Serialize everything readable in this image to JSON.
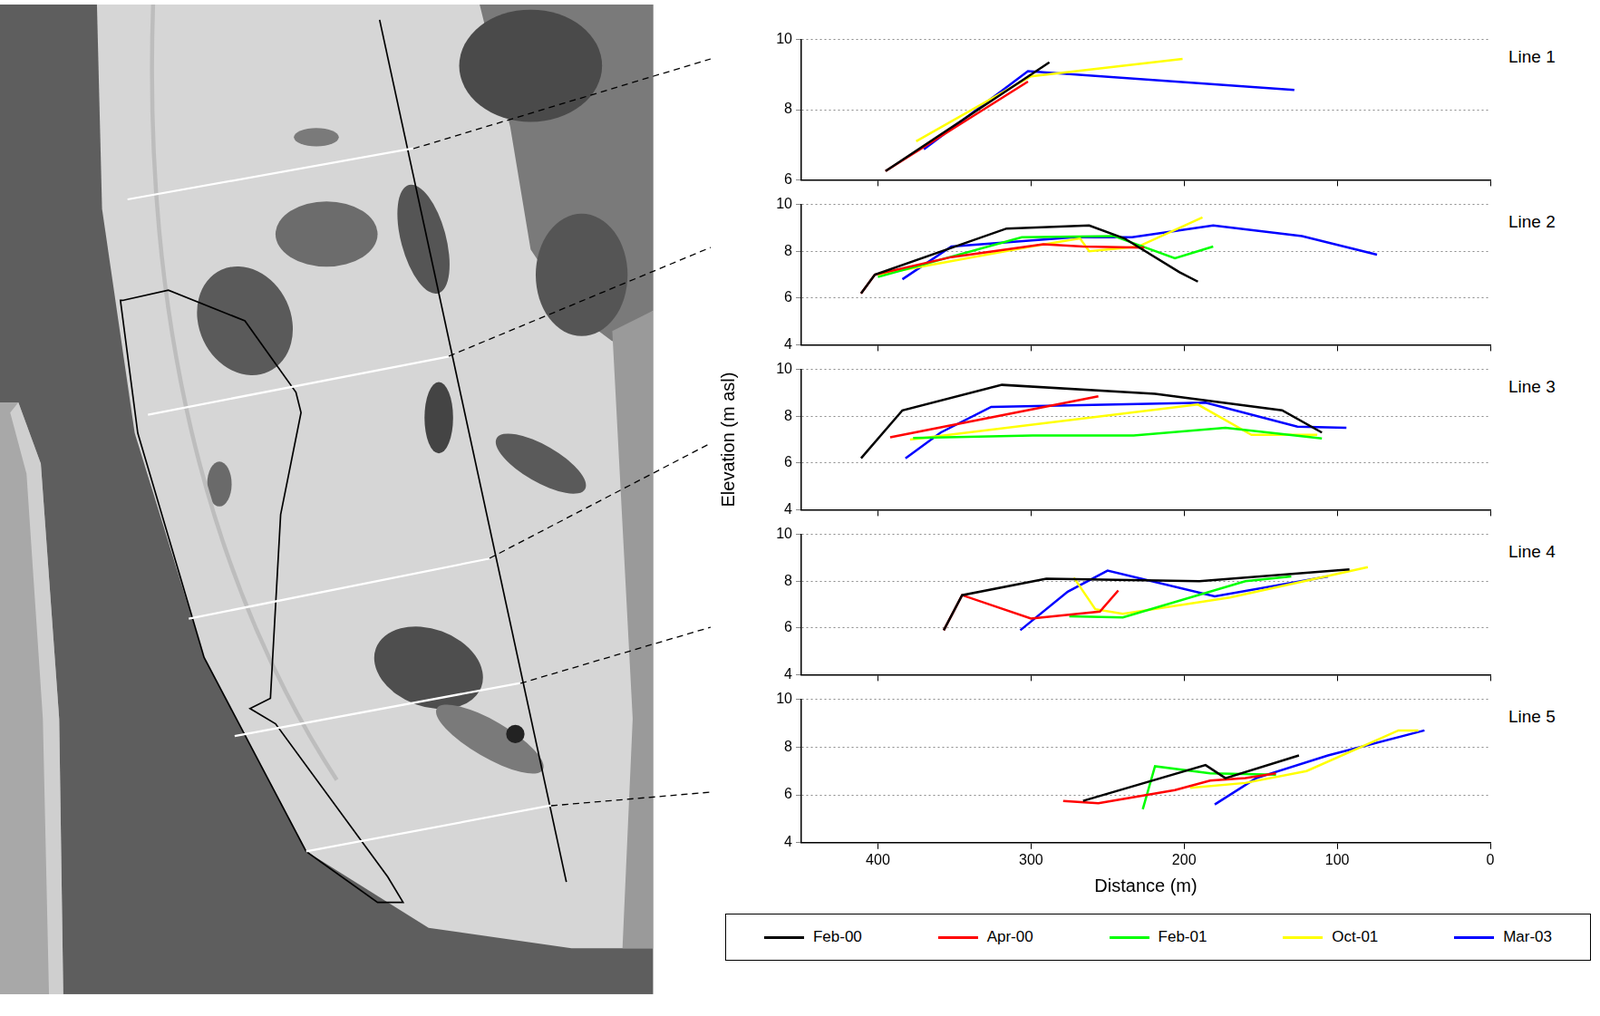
{
  "chart_data": [
    {
      "type": "line",
      "title": "Line 1",
      "xlim": [
        450,
        0
      ],
      "xticks": [
        400,
        300,
        200,
        100,
        0
      ],
      "ylim": [
        6,
        10
      ],
      "yticks": [
        6,
        8,
        10
      ],
      "grid": true,
      "tick_labels": "y",
      "series": [
        {
          "name": "Feb-00",
          "color": "#000000",
          "x": [
            395,
            300,
            288
          ],
          "values": [
            6.25,
            9.0,
            9.35
          ]
        },
        {
          "name": "Apr-00",
          "color": "#ff0000",
          "x": [
            395,
            302
          ],
          "values": [
            6.25,
            8.8
          ]
        },
        {
          "name": "Oct-01",
          "color": "#ffff00",
          "x": [
            375,
            300,
            201
          ],
          "values": [
            7.1,
            8.95,
            9.45
          ]
        },
        {
          "name": "Mar-03",
          "color": "#0000ff",
          "x": [
            370,
            302,
            128
          ],
          "values": [
            6.87,
            9.1,
            8.56
          ]
        }
      ]
    },
    {
      "type": "line",
      "title": "Line 2",
      "xlim": [
        450,
        0
      ],
      "xticks": [
        400,
        300,
        200,
        100,
        0
      ],
      "ylim": [
        4,
        10
      ],
      "yticks": [
        4,
        6,
        8,
        10
      ],
      "grid": true,
      "tick_labels": "y",
      "series": [
        {
          "name": "Feb-00",
          "color": "#000000",
          "x": [
            411,
            402,
            316,
            262,
            239,
            203,
            191
          ],
          "values": [
            6.2,
            7.0,
            8.97,
            9.1,
            8.55,
            7.1,
            6.7
          ]
        },
        {
          "name": "Apr-00",
          "color": "#ff0000",
          "x": [
            411,
            402,
            352,
            292,
            266,
            226
          ],
          "values": [
            6.2,
            7.0,
            7.75,
            8.3,
            8.2,
            8.15
          ]
        },
        {
          "name": "Feb-01",
          "color": "#00ff00",
          "x": [
            400,
            306,
            246,
            206,
            181
          ],
          "values": [
            6.9,
            8.6,
            8.65,
            7.7,
            8.2
          ]
        },
        {
          "name": "Oct-01",
          "color": "#ffff00",
          "x": [
            400,
            300,
            268,
            262,
            230,
            188
          ],
          "values": [
            7.0,
            8.2,
            8.55,
            8.0,
            8.2,
            9.45
          ]
        },
        {
          "name": "Mar-03",
          "color": "#0000ff",
          "x": [
            384,
            352,
            272,
            234,
            181,
            123,
            74
          ],
          "values": [
            6.8,
            8.2,
            8.6,
            8.6,
            9.1,
            8.65,
            7.85
          ]
        }
      ]
    },
    {
      "type": "line",
      "title": "Line 3",
      "ylabel": "Elevation (m asl)",
      "xlim": [
        450,
        0
      ],
      "xticks": [
        400,
        300,
        200,
        100,
        0
      ],
      "ylim": [
        4,
        10
      ],
      "yticks": [
        4,
        6,
        8,
        10
      ],
      "grid": true,
      "tick_labels": "y",
      "series": [
        {
          "name": "Feb-00",
          "color": "#000000",
          "x": [
            411,
            384,
            319,
            219,
            136,
            110
          ],
          "values": [
            6.2,
            8.25,
            9.34,
            8.96,
            8.25,
            7.3
          ]
        },
        {
          "name": "Apr-00",
          "color": "#ff0000",
          "x": [
            392,
            256
          ],
          "values": [
            7.1,
            8.85
          ]
        },
        {
          "name": "Feb-01",
          "color": "#00ff00",
          "x": [
            377,
            299,
            233,
            173,
            110
          ],
          "values": [
            7.07,
            7.17,
            7.17,
            7.5,
            7.05
          ]
        },
        {
          "name": "Oct-01",
          "color": "#ffff00",
          "x": [
            379,
            191,
            156,
            113
          ],
          "values": [
            7.0,
            8.5,
            7.2,
            7.2
          ]
        },
        {
          "name": "Mar-03",
          "color": "#0000ff",
          "x": [
            382,
            359,
            326,
            186,
            126,
            94
          ],
          "values": [
            6.2,
            7.3,
            8.4,
            8.58,
            7.55,
            7.5
          ]
        }
      ]
    },
    {
      "type": "line",
      "title": "Line 4",
      "xlim": [
        450,
        0
      ],
      "xticks": [
        400,
        300,
        200,
        100,
        0
      ],
      "ylim": [
        4,
        10
      ],
      "yticks": [
        4,
        6,
        8,
        10
      ],
      "grid": true,
      "tick_labels": "y",
      "series": [
        {
          "name": "Feb-00",
          "color": "#000000",
          "x": [
            357,
            345,
            290,
            190,
            92
          ],
          "values": [
            5.9,
            7.4,
            8.1,
            8.0,
            8.5
          ]
        },
        {
          "name": "Apr-00",
          "color": "#ff0000",
          "x": [
            357,
            345,
            300,
            255,
            243
          ],
          "values": [
            5.9,
            7.4,
            6.4,
            6.7,
            7.6
          ]
        },
        {
          "name": "Feb-01",
          "color": "#00ff00",
          "x": [
            275,
            240,
            160,
            130
          ],
          "values": [
            6.5,
            6.45,
            8.0,
            8.2
          ]
        },
        {
          "name": "Oct-01",
          "color": "#ffff00",
          "x": [
            272,
            258,
            240,
            170,
            80
          ],
          "values": [
            8.15,
            6.8,
            6.6,
            7.3,
            8.6
          ]
        },
        {
          "name": "Mar-03",
          "color": "#0000ff",
          "x": [
            307,
            276,
            250,
            180,
            106
          ],
          "values": [
            5.9,
            7.55,
            8.45,
            7.35,
            8.2
          ]
        }
      ]
    },
    {
      "type": "line",
      "title": "Line 5",
      "xlabel": "Distance (m)",
      "xlim": [
        450,
        0
      ],
      "xticks": [
        400,
        300,
        200,
        100,
        0
      ],
      "ylim": [
        4,
        10
      ],
      "yticks": [
        4,
        6,
        8,
        10
      ],
      "grid": true,
      "legend": "bottom",
      "series": [
        {
          "name": "Feb-00",
          "color": "#000000",
          "x": [
            266,
            186,
            173,
            125
          ],
          "values": [
            5.75,
            7.25,
            6.7,
            7.65
          ]
        },
        {
          "name": "Apr-00",
          "color": "#ff0000",
          "x": [
            279,
            256,
            206,
            183,
            160,
            140
          ],
          "values": [
            5.75,
            5.65,
            6.2,
            6.6,
            6.7,
            6.9
          ]
        },
        {
          "name": "Feb-01",
          "color": "#00ff00",
          "x": [
            227,
            219,
            183,
            140
          ],
          "values": [
            5.4,
            7.2,
            6.9,
            6.85
          ]
        },
        {
          "name": "Oct-01",
          "color": "#ffff00",
          "x": [
            196,
            160,
            120,
            60,
            47
          ],
          "values": [
            6.3,
            6.5,
            7.0,
            8.7,
            8.7
          ]
        },
        {
          "name": "Mar-03",
          "color": "#0000ff",
          "x": [
            180,
            153,
            106,
            43
          ],
          "values": [
            5.6,
            6.7,
            7.65,
            8.7
          ]
        }
      ]
    }
  ]
}
